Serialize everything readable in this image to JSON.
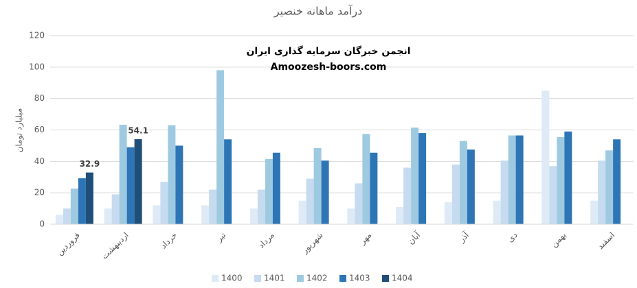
{
  "chart_data": {
    "type": "bar",
    "title": "درآمد ماهانه خنصیر",
    "y_label": "میلیارد تومان",
    "annotations": [
      "انجمن خبرگان سرمایه گذاری ایران",
      "Amoozesh-boors.com"
    ],
    "categories": [
      "فروردین",
      "اردیبهشت",
      "خرداد",
      "تیر",
      "مرداد",
      "شهریور",
      "مهر",
      "آبان",
      "آذر",
      "دی",
      "بهمن",
      "اسفند"
    ],
    "series": [
      {
        "name": "1400",
        "color": "#deebf7",
        "values": [
          6,
          10,
          12,
          12,
          10,
          15,
          10,
          11,
          14,
          15,
          85,
          15
        ]
      },
      {
        "name": "1401",
        "color": "#c6dbef",
        "values": [
          10,
          19,
          27,
          22,
          22,
          29,
          26,
          36,
          38,
          40.5,
          37,
          40.5
        ]
      },
      {
        "name": "1402",
        "color": "#9ecae1",
        "values": [
          22.7,
          63.3,
          63,
          98,
          41.5,
          48.5,
          57.5,
          61.5,
          53,
          56.5,
          55.5,
          47
        ]
      },
      {
        "name": "1403",
        "color": "#2e75b6",
        "values": [
          29.3,
          49,
          50,
          54,
          45.5,
          40.5,
          45.5,
          58,
          47.5,
          56.5,
          59,
          54
        ]
      },
      {
        "name": "1404",
        "color": "#1f4e79",
        "values": [
          32.9,
          54.1,
          null,
          null,
          null,
          null,
          null,
          null,
          null,
          null,
          null,
          null
        ],
        "show_values": true
      }
    ],
    "ylim": [
      0,
      120
    ],
    "yticks": [
      0,
      20,
      40,
      60,
      80,
      100,
      120
    ],
    "grid": true,
    "legend": "bottom"
  }
}
